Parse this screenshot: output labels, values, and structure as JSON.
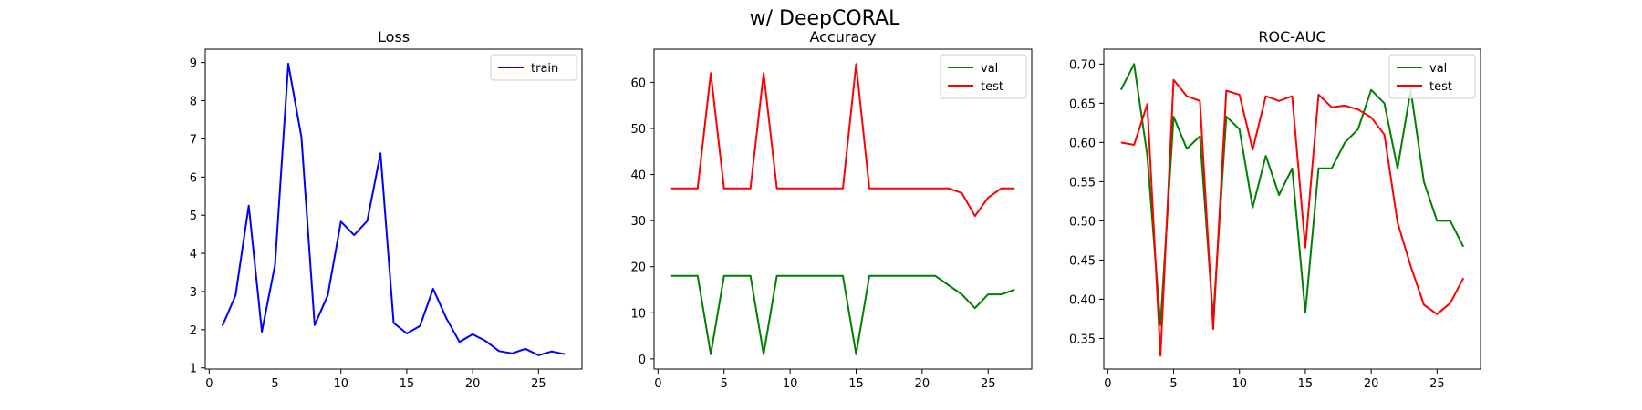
{
  "figure": {
    "suptitle": "w/ DeepCORAL"
  },
  "chart_data": [
    {
      "type": "line",
      "title": "Loss",
      "xlabel": "",
      "ylabel": "",
      "xlim": [
        -0.3,
        28.3
      ],
      "ylim": [
        0.97,
        9.35
      ],
      "xticks": [
        0,
        5,
        10,
        15,
        20,
        25
      ],
      "yticks": [
        1,
        2,
        3,
        4,
        5,
        6,
        7,
        8,
        9
      ],
      "yticklabels": [
        "1",
        "2",
        "3",
        "4",
        "5",
        "6",
        "7",
        "8",
        "9"
      ],
      "legend": "top-right",
      "grid": false,
      "x": [
        1,
        2,
        3,
        4,
        5,
        6,
        7,
        8,
        9,
        10,
        11,
        12,
        13,
        14,
        15,
        16,
        17,
        18,
        19,
        20,
        21,
        22,
        23,
        24,
        25,
        26,
        27
      ],
      "series": [
        {
          "name": "train",
          "color": "#0000ff",
          "values": [
            2.1,
            2.9,
            5.25,
            1.95,
            3.7,
            8.97,
            7.05,
            2.12,
            2.9,
            4.83,
            4.48,
            4.85,
            6.62,
            2.18,
            1.9,
            2.1,
            3.07,
            2.3,
            1.68,
            1.88,
            1.7,
            1.44,
            1.38,
            1.5,
            1.33,
            1.43,
            1.36
          ]
        }
      ]
    },
    {
      "type": "line",
      "title": "Accuracy",
      "xlabel": "",
      "ylabel": "",
      "xlim": [
        -0.3,
        28.3
      ],
      "ylim": [
        -2.2,
        67.2
      ],
      "xticks": [
        0,
        5,
        10,
        15,
        20,
        25
      ],
      "yticks": [
        0,
        10,
        20,
        30,
        40,
        50,
        60
      ],
      "yticklabels": [
        "0",
        "10",
        "20",
        "30",
        "40",
        "50",
        "60"
      ],
      "legend": "top-right",
      "grid": false,
      "x": [
        1,
        2,
        3,
        4,
        5,
        6,
        7,
        8,
        9,
        10,
        11,
        12,
        13,
        14,
        15,
        16,
        17,
        18,
        19,
        20,
        21,
        22,
        23,
        24,
        25,
        26,
        27
      ],
      "series": [
        {
          "name": "val",
          "color": "#008000",
          "values": [
            18,
            18,
            18,
            1,
            18,
            18,
            18,
            1,
            18,
            18,
            18,
            18,
            18,
            18,
            1,
            18,
            18,
            18,
            18,
            18,
            18,
            16,
            14,
            11,
            14,
            14,
            15
          ]
        },
        {
          "name": "test",
          "color": "#ff0000",
          "values": [
            37,
            37,
            37,
            62,
            37,
            37,
            37,
            62,
            37,
            37,
            37,
            37,
            37,
            37,
            64,
            37,
            37,
            37,
            37,
            37,
            37,
            37,
            36,
            31,
            35,
            37,
            37
          ]
        }
      ]
    },
    {
      "type": "line",
      "title": "ROC-AUC",
      "xlabel": "",
      "ylabel": "",
      "xlim": [
        -0.3,
        28.3
      ],
      "ylim": [
        0.311,
        0.719
      ],
      "xticks": [
        0,
        5,
        10,
        15,
        20,
        25
      ],
      "yticks": [
        0.35,
        0.4,
        0.45,
        0.5,
        0.55,
        0.6,
        0.65,
        0.7
      ],
      "yticklabels": [
        "0.35",
        "0.40",
        "0.45",
        "0.50",
        "0.55",
        "0.60",
        "0.65",
        "0.70"
      ],
      "legend": "top-right",
      "grid": false,
      "x": [
        1,
        2,
        3,
        4,
        5,
        6,
        7,
        8,
        9,
        10,
        11,
        12,
        13,
        14,
        15,
        16,
        17,
        18,
        19,
        20,
        21,
        22,
        23,
        24,
        25,
        26,
        27
      ],
      "series": [
        {
          "name": "val",
          "color": "#008000",
          "values": [
            0.667,
            0.7,
            0.583,
            0.367,
            0.633,
            0.592,
            0.608,
            0.375,
            0.633,
            0.617,
            0.517,
            0.583,
            0.533,
            0.567,
            0.383,
            0.567,
            0.567,
            0.6,
            0.617,
            0.667,
            0.65,
            0.567,
            0.667,
            0.55,
            0.5,
            0.5,
            0.467
          ]
        },
        {
          "name": "test",
          "color": "#ff0000",
          "values": [
            0.6,
            0.597,
            0.649,
            0.328,
            0.68,
            0.659,
            0.653,
            0.362,
            0.666,
            0.661,
            0.591,
            0.659,
            0.653,
            0.659,
            0.466,
            0.661,
            0.645,
            0.647,
            0.642,
            0.632,
            0.61,
            0.498,
            0.442,
            0.393,
            0.381,
            0.395,
            0.427
          ]
        }
      ]
    }
  ]
}
